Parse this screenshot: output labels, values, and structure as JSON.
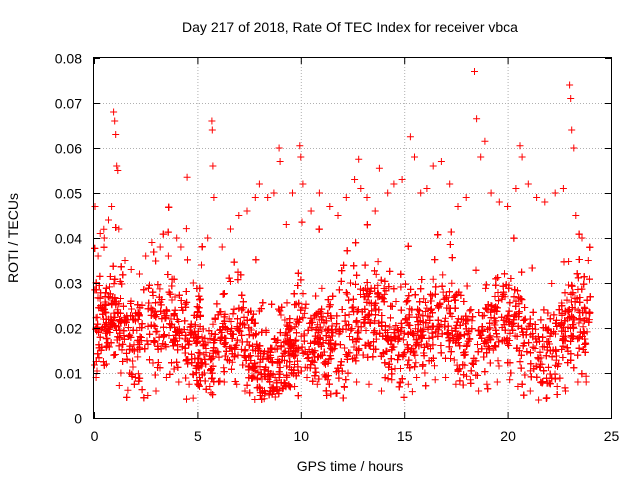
{
  "chart_data": {
    "type": "scatter",
    "title": "Day 217 of 2018, Rate Of TEC Index for receiver vbca",
    "xlabel": "GPS time / hours",
    "ylabel": "ROTI / TECUs",
    "xlim": [
      0,
      25
    ],
    "ylim": [
      0,
      0.08
    ],
    "x_ticks": [
      "0",
      "5",
      "10",
      "15",
      "20",
      "25"
    ],
    "y_ticks": [
      "0",
      "0.01",
      "0.02",
      "0.03",
      "0.04",
      "0.05",
      "0.06",
      "0.07",
      "0.08"
    ],
    "grid": true,
    "marker": "plus",
    "color": "#ff0000",
    "points": [
      [
        0.05,
        0.047
      ],
      [
        0.2,
        0.036
      ],
      [
        0.3,
        0.041
      ],
      [
        0.5,
        0.04
      ],
      [
        0.7,
        0.044
      ],
      [
        0.85,
        0.047
      ],
      [
        0.95,
        0.068
      ],
      [
        1.0,
        0.066
      ],
      [
        1.05,
        0.063
      ],
      [
        1.1,
        0.056
      ],
      [
        1.15,
        0.055
      ],
      [
        1.2,
        0.042
      ],
      [
        1.5,
        0.035
      ],
      [
        1.8,
        0.033
      ],
      [
        2.2,
        0.032
      ],
      [
        2.5,
        0.036
      ],
      [
        2.8,
        0.039
      ],
      [
        3.2,
        0.038
      ],
      [
        3.6,
        0.036
      ],
      [
        4.0,
        0.04
      ],
      [
        4.2,
        0.038
      ],
      [
        4.5,
        0.0535
      ],
      [
        4.8,
        0.03
      ],
      [
        5.2,
        0.034
      ],
      [
        5.5,
        0.04
      ],
      [
        5.7,
        0.066
      ],
      [
        5.72,
        0.064
      ],
      [
        5.75,
        0.056
      ],
      [
        5.8,
        0.049
      ],
      [
        6.2,
        0.038
      ],
      [
        6.6,
        0.042
      ],
      [
        7.0,
        0.045
      ],
      [
        7.4,
        0.046
      ],
      [
        7.8,
        0.049
      ],
      [
        8.0,
        0.052
      ],
      [
        8.4,
        0.049
      ],
      [
        8.7,
        0.05
      ],
      [
        8.95,
        0.06
      ],
      [
        9.0,
        0.057
      ],
      [
        9.3,
        0.043
      ],
      [
        9.6,
        0.05
      ],
      [
        9.95,
        0.0605
      ],
      [
        10.0,
        0.058
      ],
      [
        10.1,
        0.052
      ],
      [
        10.5,
        0.046
      ],
      [
        10.9,
        0.05
      ],
      [
        11.4,
        0.047
      ],
      [
        11.8,
        0.045
      ],
      [
        12.2,
        0.049
      ],
      [
        12.6,
        0.053
      ],
      [
        12.8,
        0.0575
      ],
      [
        12.9,
        0.051
      ],
      [
        13.2,
        0.049
      ],
      [
        13.6,
        0.046
      ],
      [
        13.8,
        0.0555
      ],
      [
        14.2,
        0.05
      ],
      [
        14.5,
        0.052
      ],
      [
        14.9,
        0.053
      ],
      [
        15.3,
        0.0625
      ],
      [
        15.5,
        0.058
      ],
      [
        15.8,
        0.05
      ],
      [
        16.1,
        0.051
      ],
      [
        16.4,
        0.056
      ],
      [
        16.8,
        0.057
      ],
      [
        17.2,
        0.052
      ],
      [
        17.6,
        0.047
      ],
      [
        18.0,
        0.049
      ],
      [
        18.4,
        0.077
      ],
      [
        18.5,
        0.0665
      ],
      [
        18.7,
        0.058
      ],
      [
        18.9,
        0.0615
      ],
      [
        19.2,
        0.05
      ],
      [
        19.6,
        0.048
      ],
      [
        20.0,
        0.047
      ],
      [
        20.4,
        0.051
      ],
      [
        20.6,
        0.0605
      ],
      [
        20.7,
        0.058
      ],
      [
        21.0,
        0.052
      ],
      [
        21.4,
        0.049
      ],
      [
        21.8,
        0.048
      ],
      [
        22.3,
        0.05
      ],
      [
        22.7,
        0.051
      ],
      [
        23.0,
        0.074
      ],
      [
        23.05,
        0.071
      ],
      [
        23.1,
        0.064
      ],
      [
        23.2,
        0.06
      ],
      [
        23.3,
        0.045
      ],
      [
        23.6,
        0.04
      ],
      [
        23.9,
        0.035
      ],
      [
        0.1,
        0.009
      ],
      [
        0.6,
        0.012
      ],
      [
        1.3,
        0.01
      ],
      [
        2.0,
        0.009
      ],
      [
        2.6,
        0.005
      ],
      [
        3.0,
        0.006
      ],
      [
        3.5,
        0.009
      ],
      [
        4.1,
        0.008
      ],
      [
        4.6,
        0.0075
      ],
      [
        5.1,
        0.009
      ],
      [
        5.6,
        0.007
      ],
      [
        6.3,
        0.008
      ],
      [
        6.9,
        0.0075
      ],
      [
        7.3,
        0.006
      ],
      [
        7.9,
        0.0085
      ],
      [
        8.5,
        0.008
      ],
      [
        9.1,
        0.0065
      ],
      [
        9.7,
        0.007
      ],
      [
        10.3,
        0.009
      ],
      [
        10.8,
        0.0075
      ],
      [
        11.3,
        0.0085
      ],
      [
        11.7,
        0.0055
      ],
      [
        12.1,
        0.007
      ],
      [
        12.7,
        0.008
      ],
      [
        13.3,
        0.0075
      ],
      [
        13.9,
        0.006
      ],
      [
        14.4,
        0.0085
      ],
      [
        14.8,
        0.008
      ],
      [
        15.2,
        0.0075
      ],
      [
        15.6,
        0.009
      ],
      [
        16.0,
        0.01
      ],
      [
        16.5,
        0.0085
      ],
      [
        17.0,
        0.009
      ],
      [
        17.5,
        0.0075
      ],
      [
        18.2,
        0.0085
      ],
      [
        18.6,
        0.006
      ],
      [
        19.0,
        0.0075
      ],
      [
        19.5,
        0.008
      ],
      [
        20.1,
        0.0085
      ],
      [
        20.5,
        0.007
      ],
      [
        21.1,
        0.006
      ],
      [
        21.5,
        0.004
      ],
      [
        21.9,
        0.0045
      ],
      [
        22.4,
        0.007
      ],
      [
        22.8,
        0.006
      ],
      [
        23.4,
        0.008
      ],
      [
        23.8,
        0.008
      ]
    ]
  }
}
